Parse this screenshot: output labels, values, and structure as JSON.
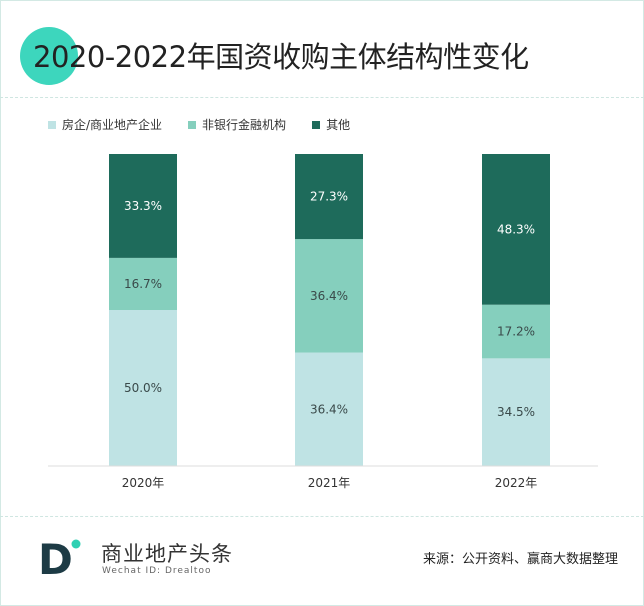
{
  "title": "2020-2022年国资收购主体结构性变化",
  "legend": [
    {
      "label": "房企/商业地产企业",
      "color": "#bfe3e4"
    },
    {
      "label": "非银行金融机构",
      "color": "#85cfbd"
    },
    {
      "label": "其他",
      "color": "#1e6b5b"
    }
  ],
  "chart_data": {
    "type": "bar",
    "stacked": "percent",
    "categories": [
      "2020年",
      "2021年",
      "2022年"
    ],
    "series": [
      {
        "name": "房企/商业地产企业",
        "values": [
          50.0,
          36.4,
          34.5
        ],
        "labels": [
          "50.0%",
          "36.4%",
          "34.5%"
        ],
        "color": "#bfe3e4"
      },
      {
        "name": "非银行金融机构",
        "values": [
          16.7,
          36.4,
          17.2
        ],
        "labels": [
          "16.7%",
          "36.4%",
          "17.2%"
        ],
        "color": "#85cfbd"
      },
      {
        "name": "其他",
        "values": [
          33.3,
          27.3,
          48.3
        ],
        "labels": [
          "33.3%",
          "27.3%",
          "48.3%"
        ],
        "color": "#1e6b5b"
      }
    ],
    "ylim": [
      0,
      100
    ],
    "grid": false,
    "legend_position": "top-left"
  },
  "footer": {
    "brand": "商业地产头条",
    "brand_sub": "Wechat ID: Drealtoo",
    "logo_letter": "D",
    "source": "来源：公开资料、赢商大数据整理"
  }
}
